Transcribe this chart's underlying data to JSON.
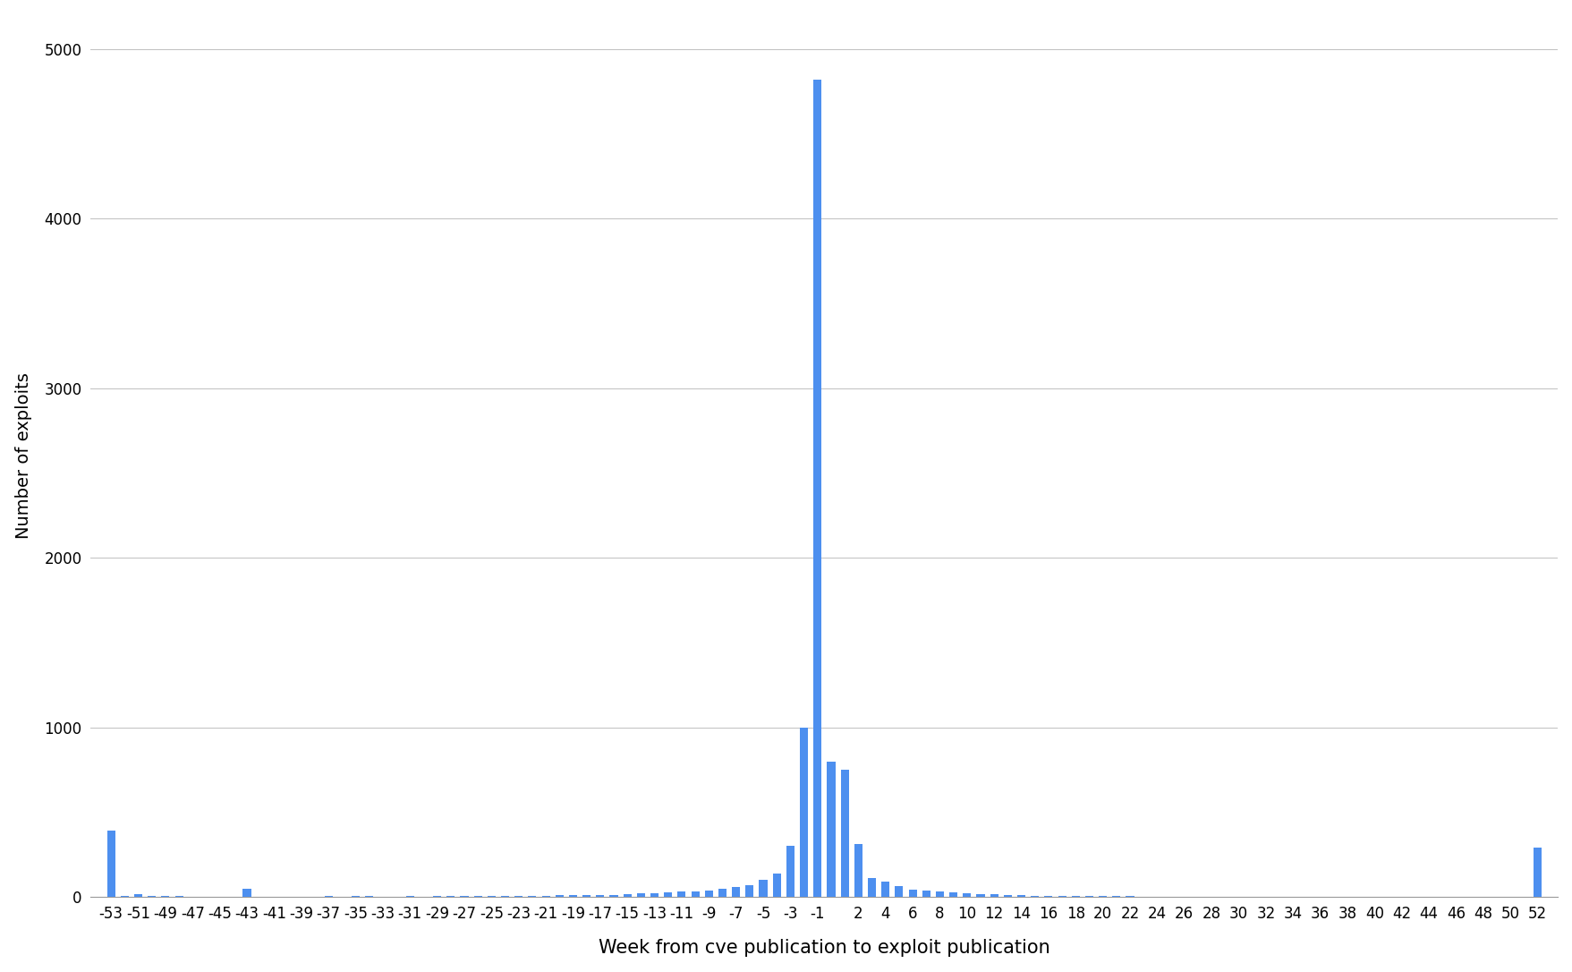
{
  "bar_color": "#4d8fef",
  "background_color": "#ffffff",
  "grid_color": "#c0c0c0",
  "xlabel": "Week from cve publication to exploit publication",
  "ylabel": "Number of exploits",
  "xlabel_fontsize": 15,
  "ylabel_fontsize": 14,
  "tick_fontsize": 12,
  "ylim": [
    0,
    5200
  ],
  "yticks": [
    0,
    1000,
    2000,
    3000,
    4000,
    5000
  ],
  "weeks": [
    -53,
    -52,
    -51,
    -50,
    -49,
    -48,
    -47,
    -46,
    -45,
    -44,
    -43,
    -42,
    -41,
    -40,
    -39,
    -38,
    -37,
    -36,
    -35,
    -34,
    -33,
    -32,
    -31,
    -30,
    -29,
    -28,
    -27,
    -26,
    -25,
    -24,
    -23,
    -22,
    -21,
    -20,
    -19,
    -18,
    -17,
    -16,
    -15,
    -14,
    -13,
    -12,
    -11,
    -10,
    -9,
    -8,
    -7,
    -6,
    -5,
    -4,
    -3,
    -2,
    -1,
    0,
    1,
    2,
    3,
    4,
    5,
    6,
    7,
    8,
    9,
    10,
    11,
    12,
    13,
    14,
    15,
    16,
    17,
    18,
    19,
    20,
    21,
    22,
    23,
    24,
    25,
    26,
    27,
    28,
    29,
    30,
    31,
    32,
    33,
    34,
    35,
    36,
    37,
    38,
    39,
    40,
    41,
    42,
    43,
    44,
    45,
    46,
    47,
    48,
    49,
    50,
    51,
    52
  ],
  "values": [
    390,
    5,
    18,
    4,
    4,
    8,
    2,
    2,
    2,
    2,
    48,
    2,
    2,
    2,
    2,
    2,
    8,
    2,
    4,
    4,
    2,
    2,
    4,
    2,
    6,
    6,
    6,
    6,
    8,
    6,
    6,
    8,
    8,
    12,
    12,
    10,
    12,
    14,
    18,
    20,
    22,
    26,
    30,
    35,
    40,
    50,
    58,
    70,
    100,
    140,
    300,
    1000,
    4820,
    800,
    750,
    310,
    110,
    90,
    65,
    45,
    38,
    30,
    25,
    22,
    18,
    15,
    12,
    10,
    8,
    7,
    6,
    5,
    5,
    4,
    4,
    4,
    3,
    3,
    3,
    3,
    3,
    3,
    3,
    3,
    3,
    3,
    2,
    2,
    2,
    2,
    2,
    2,
    2,
    2,
    2,
    2,
    2,
    2,
    2,
    2,
    2,
    2,
    2,
    2,
    2,
    290
  ],
  "xtick_positions": [
    -53,
    -51,
    -49,
    -47,
    -45,
    -43,
    -41,
    -39,
    -37,
    -35,
    -33,
    -31,
    -29,
    -27,
    -25,
    -23,
    -21,
    -19,
    -17,
    -15,
    -13,
    -11,
    -9,
    -7,
    -5,
    -3,
    -1,
    2,
    4,
    6,
    8,
    10,
    12,
    14,
    16,
    18,
    20,
    22,
    24,
    26,
    28,
    30,
    32,
    34,
    36,
    38,
    40,
    42,
    44,
    46,
    48,
    50,
    52
  ],
  "xtick_labels": [
    "-53",
    "-51",
    "-49",
    "-47",
    "-45",
    "-43",
    "-41",
    "-39",
    "-37",
    "-35",
    "-33",
    "-31",
    "-29",
    "-27",
    "-25",
    "-23",
    "-21",
    "-19",
    "-17",
    "-15",
    "-13",
    "-11",
    "-9",
    "-7",
    "-5",
    "-3",
    "-1",
    "2",
    "4",
    "6",
    "8",
    "10",
    "12",
    "14",
    "16",
    "18",
    "20",
    "22",
    "24",
    "26",
    "28",
    "30",
    "32",
    "34",
    "36",
    "38",
    "40",
    "42",
    "44",
    "46",
    "48",
    "50",
    "52"
  ]
}
